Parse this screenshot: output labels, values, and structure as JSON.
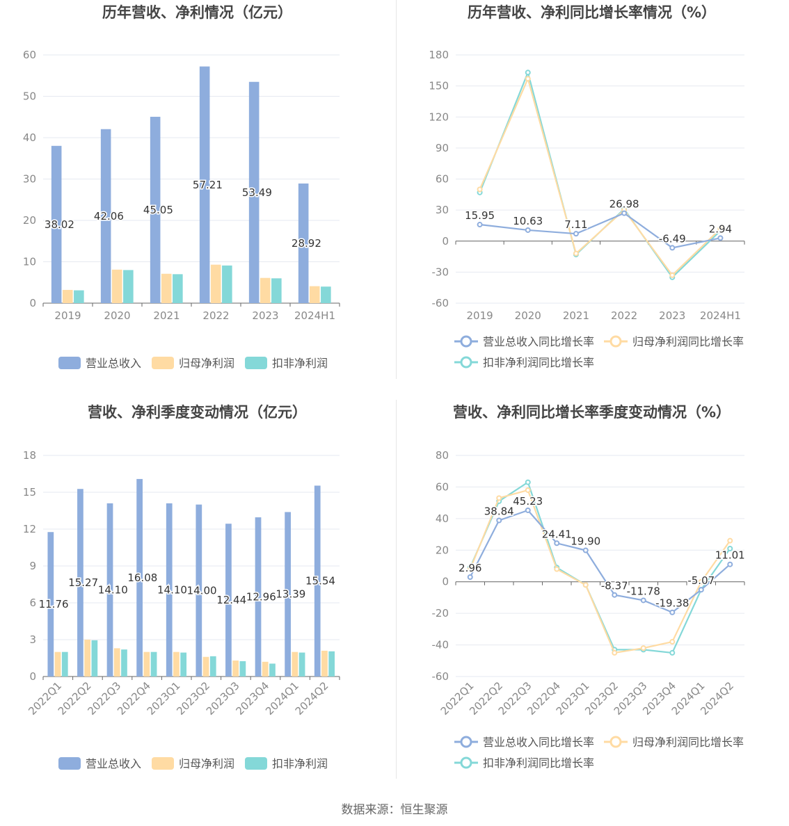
{
  "source_text": "数据来源：恒生聚源",
  "colors": {
    "revenue": "#8eaddd",
    "parent_net": "#ffdba3",
    "deducted_net": "#84d8d8",
    "grid": "#e6e9f0",
    "axis_text": "#888888",
    "label_text": "#333333"
  },
  "chart_data": [
    {
      "type": "bar",
      "title": "历年营收、净利情况（亿元）",
      "categories": [
        "2019",
        "2020",
        "2021",
        "2022",
        "2023",
        "2024H1"
      ],
      "ylim": [
        0,
        60
      ],
      "yticks": [
        0,
        10,
        20,
        30,
        40,
        50,
        60
      ],
      "series": [
        {
          "name": "营业总收入",
          "values": [
            38.02,
            42.06,
            45.05,
            57.21,
            53.49,
            28.92
          ],
          "labels": [
            "38.02",
            "42.06",
            "45.05",
            "57.21",
            "53.49",
            "28.92"
          ]
        },
        {
          "name": "归母净利润",
          "values": [
            3.2,
            8.1,
            7.1,
            9.3,
            6.1,
            4.1
          ]
        },
        {
          "name": "扣非净利润",
          "values": [
            3.1,
            8.0,
            7.0,
            9.1,
            6.0,
            4.0
          ]
        }
      ],
      "legend_position": "bottom",
      "grid": true
    },
    {
      "type": "line",
      "title": "历年营收、净利同比增长率情况（%）",
      "categories": [
        "2019",
        "2020",
        "2021",
        "2022",
        "2023",
        "2024H1"
      ],
      "ylim": [
        -60,
        180
      ],
      "yticks": [
        -60,
        -30,
        0,
        30,
        60,
        90,
        120,
        150,
        180
      ],
      "series": [
        {
          "name": "营业总收入同比增长率",
          "values": [
            15.95,
            10.63,
            7.11,
            26.98,
            -6.49,
            2.94
          ],
          "labels": [
            "15.95",
            "10.63",
            "7.11",
            "26.98",
            "-6.49",
            "2.94"
          ]
        },
        {
          "name": "归母净利润同比增长率",
          "values": [
            50,
            157,
            -12,
            30,
            -33,
            12
          ]
        },
        {
          "name": "扣非净利润同比增长率",
          "values": [
            47,
            163,
            -13,
            31,
            -35,
            10
          ]
        }
      ],
      "legend_position": "bottom",
      "grid": true
    },
    {
      "type": "bar",
      "title": "营收、净利季度变动情况（亿元）",
      "categories": [
        "2022Q1",
        "2022Q2",
        "2022Q3",
        "2022Q4",
        "2023Q1",
        "2023Q2",
        "2023Q3",
        "2023Q4",
        "2024Q1",
        "2024Q2"
      ],
      "ylim": [
        0,
        18
      ],
      "yticks": [
        0,
        3,
        6,
        9,
        12,
        15,
        18
      ],
      "series": [
        {
          "name": "营业总收入",
          "values": [
            11.76,
            15.27,
            14.1,
            16.08,
            14.1,
            14.0,
            12.44,
            12.96,
            13.39,
            15.54
          ],
          "labels": [
            "11.76",
            "15.27",
            "14.10",
            "16.08",
            "14.10",
            "14.00",
            "12.44",
            "12.96",
            "13.39",
            "15.54"
          ]
        },
        {
          "name": "归母净利润",
          "values": [
            2.0,
            3.0,
            2.3,
            2.0,
            2.0,
            1.6,
            1.3,
            1.2,
            2.0,
            2.1
          ]
        },
        {
          "name": "扣非净利润",
          "values": [
            2.0,
            2.95,
            2.2,
            2.0,
            1.95,
            1.65,
            1.25,
            1.05,
            1.95,
            2.05
          ]
        }
      ],
      "legend_position": "bottom",
      "grid": true
    },
    {
      "type": "line",
      "title": "营收、净利同比增长率季度变动情况（%）",
      "categories": [
        "2022Q1",
        "2022Q2",
        "2022Q3",
        "2022Q4",
        "2023Q1",
        "2023Q2",
        "2023Q3",
        "2023Q4",
        "2024Q1",
        "2024Q2"
      ],
      "ylim": [
        -60,
        80
      ],
      "yticks": [
        -60,
        -40,
        -20,
        0,
        20,
        40,
        60,
        80
      ],
      "series": [
        {
          "name": "营业总收入同比增长率",
          "values": [
            2.96,
            38.84,
            45.23,
            24.41,
            19.9,
            -8.37,
            -11.78,
            -19.38,
            -5.07,
            11.01
          ],
          "labels": [
            "2.96",
            "38.84",
            "45.23",
            "24.41",
            "19.90",
            "-8.37",
            "-11.78",
            "-19.38",
            "-5.07",
            "11.01"
          ]
        },
        {
          "name": "归母净利润同比增长率",
          "values": [
            8,
            53,
            58,
            8,
            -2,
            -45,
            -42,
            -38,
            0,
            26
          ]
        },
        {
          "name": "扣非净利润同比增长率",
          "values": [
            9,
            51,
            63,
            9,
            -2,
            -43,
            -43,
            -45,
            -5,
            21
          ]
        }
      ],
      "legend_position": "bottom",
      "grid": true
    }
  ]
}
